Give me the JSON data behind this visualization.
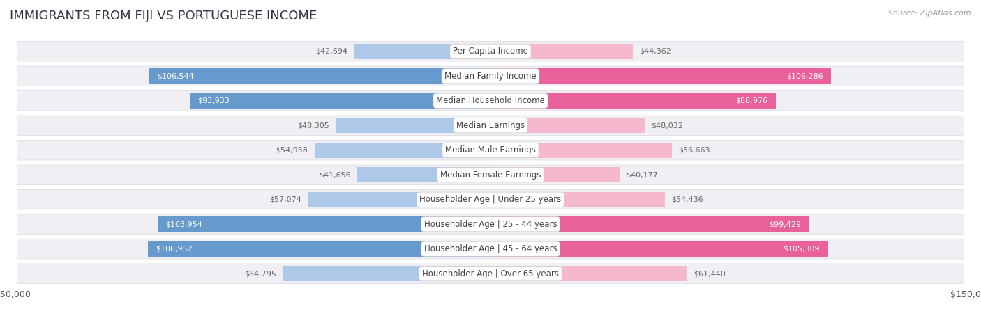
{
  "title": "IMMIGRANTS FROM FIJI VS PORTUGUESE INCOME",
  "source": "Source: ZipAtlas.com",
  "categories": [
    "Per Capita Income",
    "Median Family Income",
    "Median Household Income",
    "Median Earnings",
    "Median Male Earnings",
    "Median Female Earnings",
    "Householder Age | Under 25 years",
    "Householder Age | 25 - 44 years",
    "Householder Age | 45 - 64 years",
    "Householder Age | Over 65 years"
  ],
  "fiji_values": [
    42694,
    106544,
    93933,
    48305,
    54958,
    41656,
    57074,
    103954,
    106952,
    64795
  ],
  "portuguese_values": [
    44362,
    106286,
    88976,
    48032,
    56663,
    40177,
    54436,
    99429,
    105309,
    61440
  ],
  "fiji_color_light": "#adc8e8",
  "fiji_color_dark": "#6699cc",
  "portuguese_color_light": "#f5b8ce",
  "portuguese_color_dark": "#e8619a",
  "max_value": 150000,
  "fiji_label": "Immigrants from Fiji",
  "portuguese_label": "Portuguese",
  "background_color": "#ffffff",
  "row_bg_color": "#f0f0f4",
  "title_color": "#333344",
  "label_text_color": "#444444",
  "value_outside_color": "#666666",
  "fiji_threshold": 70000,
  "portuguese_threshold": 70000
}
